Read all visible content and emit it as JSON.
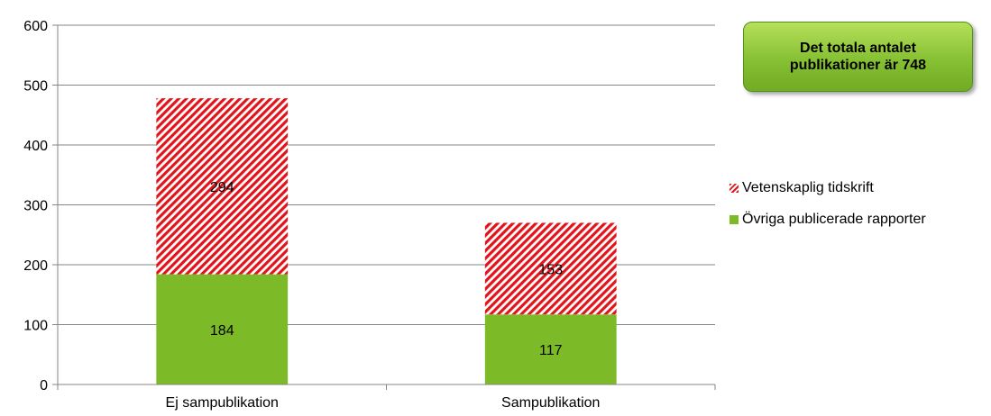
{
  "chart_data": {
    "type": "bar",
    "stacked": true,
    "categories": [
      "Ej sampublikation",
      "Sampublikation"
    ],
    "series": [
      {
        "name": "Övriga publicerade rapporter",
        "values": [
          184,
          117
        ],
        "color": "#7cba27",
        "pattern": "solid"
      },
      {
        "name": "Vetenskaplig tidskrift",
        "values": [
          294,
          153
        ],
        "color": "#e1141b",
        "pattern": "diagonal-hatch"
      }
    ],
    "ylim": [
      0,
      600
    ],
    "yticks": [
      "0",
      "100",
      "200",
      "300",
      "400",
      "500",
      "600"
    ],
    "grid": true,
    "legend": "right"
  },
  "note": {
    "text": "Det totala antalet publikationer är 748"
  },
  "legend": {
    "items": [
      {
        "label": "Vetenskaplig tidskrift"
      },
      {
        "label": "Övriga publicerade rapporter"
      }
    ]
  }
}
